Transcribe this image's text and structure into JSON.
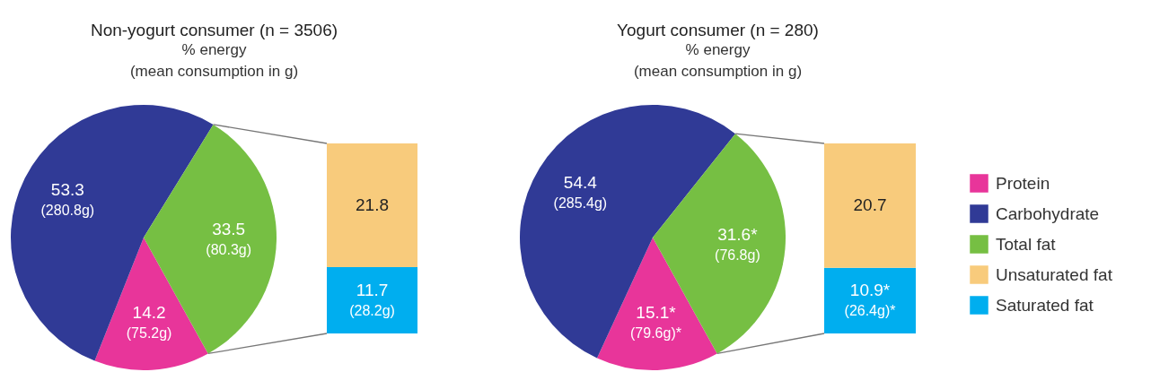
{
  "chart_data": [
    {
      "type": "pie",
      "title": "Non-yogurt consumer (n = 3506)",
      "subtitle": "% energy\n(mean consumption in g)",
      "categories": [
        null,
        null,
        null
      ],
      "values": [
        14.2,
        53.3,
        33.5
      ],
      "colors": [
        "#e8359a",
        "#303a96",
        "#76bf43"
      ],
      "value_labels": [
        "14.2\n(75.2g)",
        "53.3\n(280.8g)",
        "33.5\n(80.3g)"
      ]
    },
    {
      "type": "bar",
      "stacked": true,
      "categories": [
        null
      ],
      "series": [
        {
          "color": "#00aeef",
          "values": [
            11.7
          ],
          "value_labels": [
            "11.7\n(28.2g)"
          ]
        },
        {
          "color": "#f8cb7c",
          "values": [
            21.8
          ],
          "value_labels": [
            "21.8"
          ]
        }
      ]
    },
    {
      "type": "pie",
      "title": "Yogurt consumer (n = 280)",
      "subtitle": "% energy\n(mean consumption in g)",
      "categories": [
        "Protein",
        "Carbohydrate",
        "Total fat"
      ],
      "values": [
        15.1,
        54.4,
        31.6
      ],
      "colors": [
        "#e8359a",
        "#303a96",
        "#76bf43"
      ],
      "value_labels": [
        "15.1*\n(79.6g)*",
        "54.4\n(285.4g)",
        "31.6*\n(76.8g)"
      ],
      "legend": "right"
    },
    {
      "type": "bar",
      "stacked": true,
      "categories": [
        null
      ],
      "series": [
        {
          "name": "Saturated fat",
          "color": "#00aeef",
          "values": [
            10.9
          ],
          "value_labels": [
            "10.9*\n(26.4g)*"
          ]
        },
        {
          "name": "Unsaturated fat",
          "color": "#f8cb7c",
          "values": [
            20.7
          ],
          "value_labels": [
            "20.7"
          ]
        }
      ],
      "legend": "right"
    }
  ]
}
